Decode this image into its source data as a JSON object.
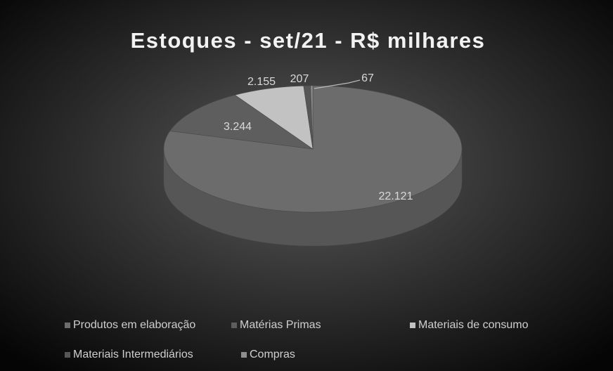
{
  "chart_data": {
    "type": "pie",
    "title": "Estoques - set/21 - R$ milhares",
    "categories": [
      "Produtos em elaboração",
      "Matérias Primas",
      "Materiais de consumo",
      "Materiais Intermediários",
      "Compras"
    ],
    "values": [
      22121,
      3244,
      2155,
      207,
      67
    ],
    "value_labels": [
      "22.121",
      "3.244",
      "2.155",
      "207",
      "67"
    ],
    "colors": [
      "#6c6c6c",
      "#5e5e5e",
      "#c2c2c2",
      "#565656",
      "#8e8e8e"
    ],
    "legend": "bottom"
  }
}
